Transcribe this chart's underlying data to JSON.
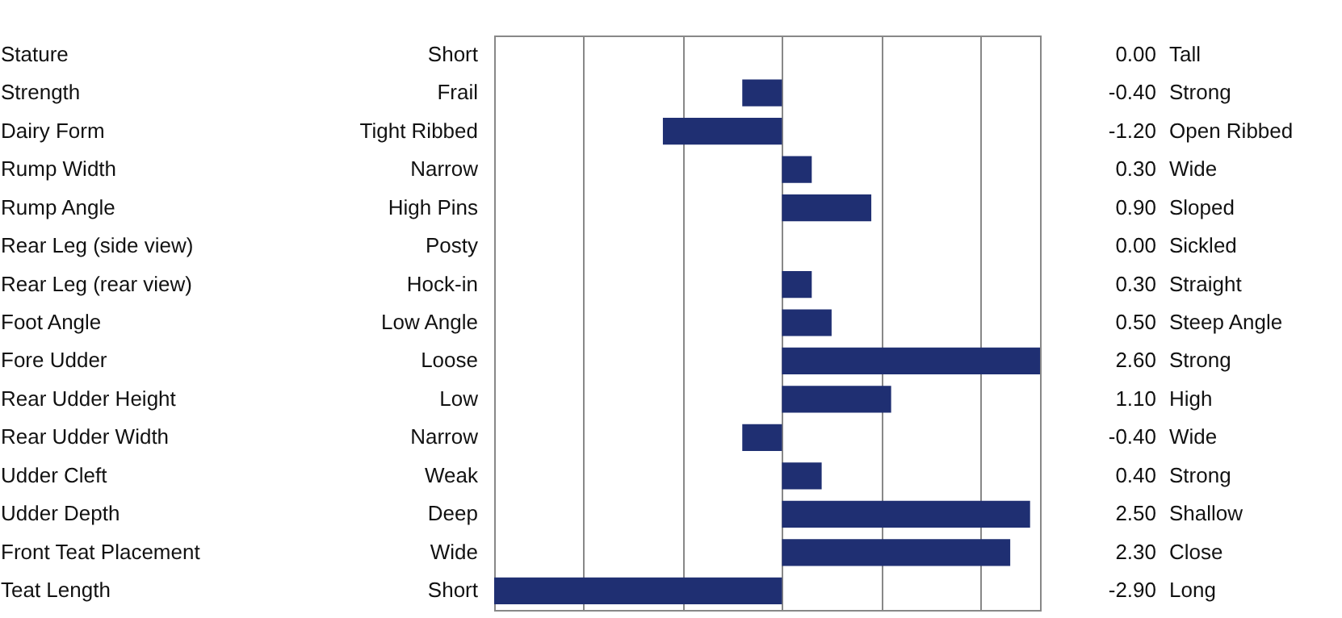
{
  "chart_data": {
    "type": "bar",
    "orientation": "horizontal",
    "categories": [
      "Stature",
      "Strength",
      "Dairy Form",
      "Rump Width",
      "Rump Angle",
      "Rear Leg (side view)",
      "Rear Leg (rear view)",
      "Foot Angle",
      "Fore Udder",
      "Rear Udder Height",
      "Rear Udder Width",
      "Udder Cleft",
      "Udder Depth",
      "Front Teat Placement",
      "Teat Length"
    ],
    "values": [
      0,
      -0.4,
      -1.2,
      0.3,
      0.9,
      0,
      0.3,
      0.5,
      2.6,
      1.1,
      -0.4,
      0.4,
      2.5,
      2.3,
      -2.9
    ],
    "value_labels": [
      "0.00",
      "-0.40",
      "-1.20",
      "0.30",
      "0.90",
      "0.00",
      "0.30",
      "0.50",
      "2.60",
      "1.10",
      "-0.40",
      "0.40",
      "2.50",
      "2.30",
      "-2.90"
    ],
    "color": "#1f2f72",
    "grid": "x",
    "tick_labels": "y",
    "annotations": [
      "Short",
      "Tall",
      "Frail",
      "Strong",
      "Tight Ribbed",
      "Open Ribbed",
      "Narrow",
      "Wide",
      "High Pins",
      "Sloped",
      "Posty",
      "Sickled",
      "Hock-in",
      "Straight",
      "Low Angle",
      "Steep Angle",
      "Loose",
      "Strong",
      "Low",
      "High",
      "Narrow",
      "Wide",
      "Weak",
      "Strong",
      "Deep",
      "Shallow",
      "Wide",
      "Close",
      "Short",
      "Long"
    ]
  }
}
